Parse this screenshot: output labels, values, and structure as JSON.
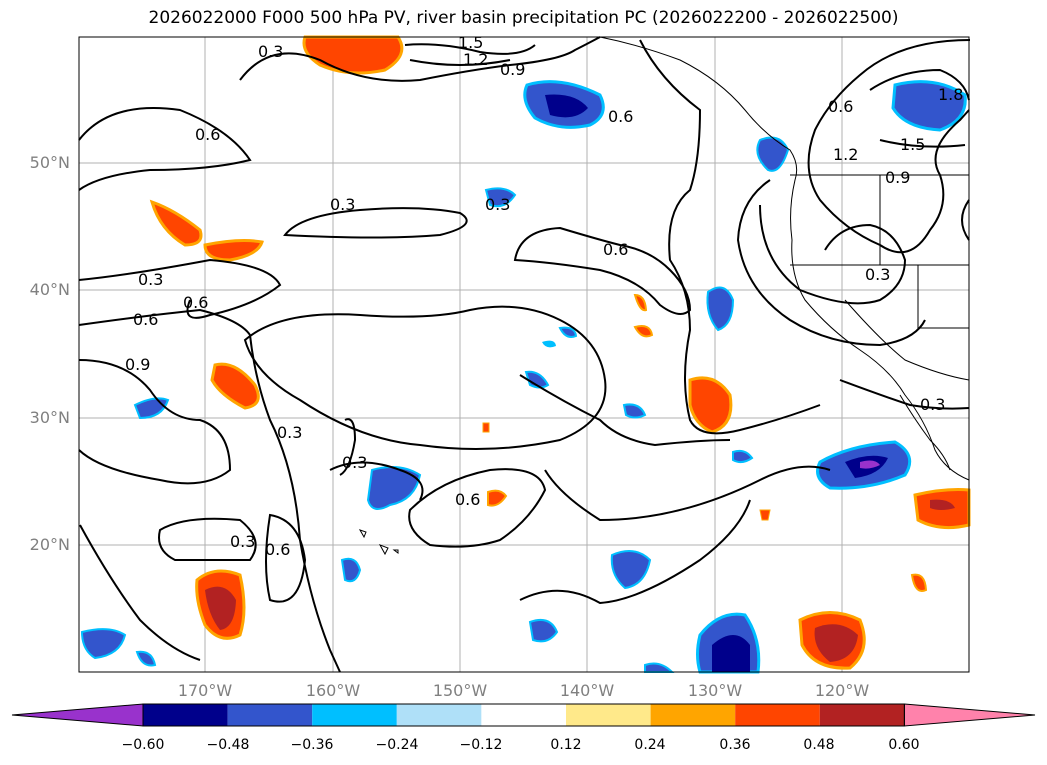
{
  "title": "2026022000 F000 500 hPa PV, river basin precipitation PC (2026022200 - 2026022500)",
  "map": {
    "lat_labels": [
      "50°N",
      "40°N",
      "30°N",
      "20°N"
    ],
    "lon_labels": [
      "170°W",
      "160°W",
      "150°W",
      "140°W",
      "130°W",
      "120°W"
    ],
    "contour_labels": [
      "0.3",
      "0.6",
      "0.9",
      "1.2",
      "1.5",
      "1.8"
    ]
  },
  "colorbar": {
    "ticks": [
      "−0.60",
      "−0.48",
      "−0.36",
      "−0.24",
      "−0.12",
      "0.12",
      "0.24",
      "0.36",
      "0.48",
      "0.60"
    ],
    "colors": [
      "#9932cc",
      "#00008b",
      "#3355cc",
      "#00bfff",
      "#afe0f8",
      "#ffffff",
      "#ffe98a",
      "#ffa500",
      "#ff4500",
      "#b22222",
      "#ff82ab"
    ]
  }
}
